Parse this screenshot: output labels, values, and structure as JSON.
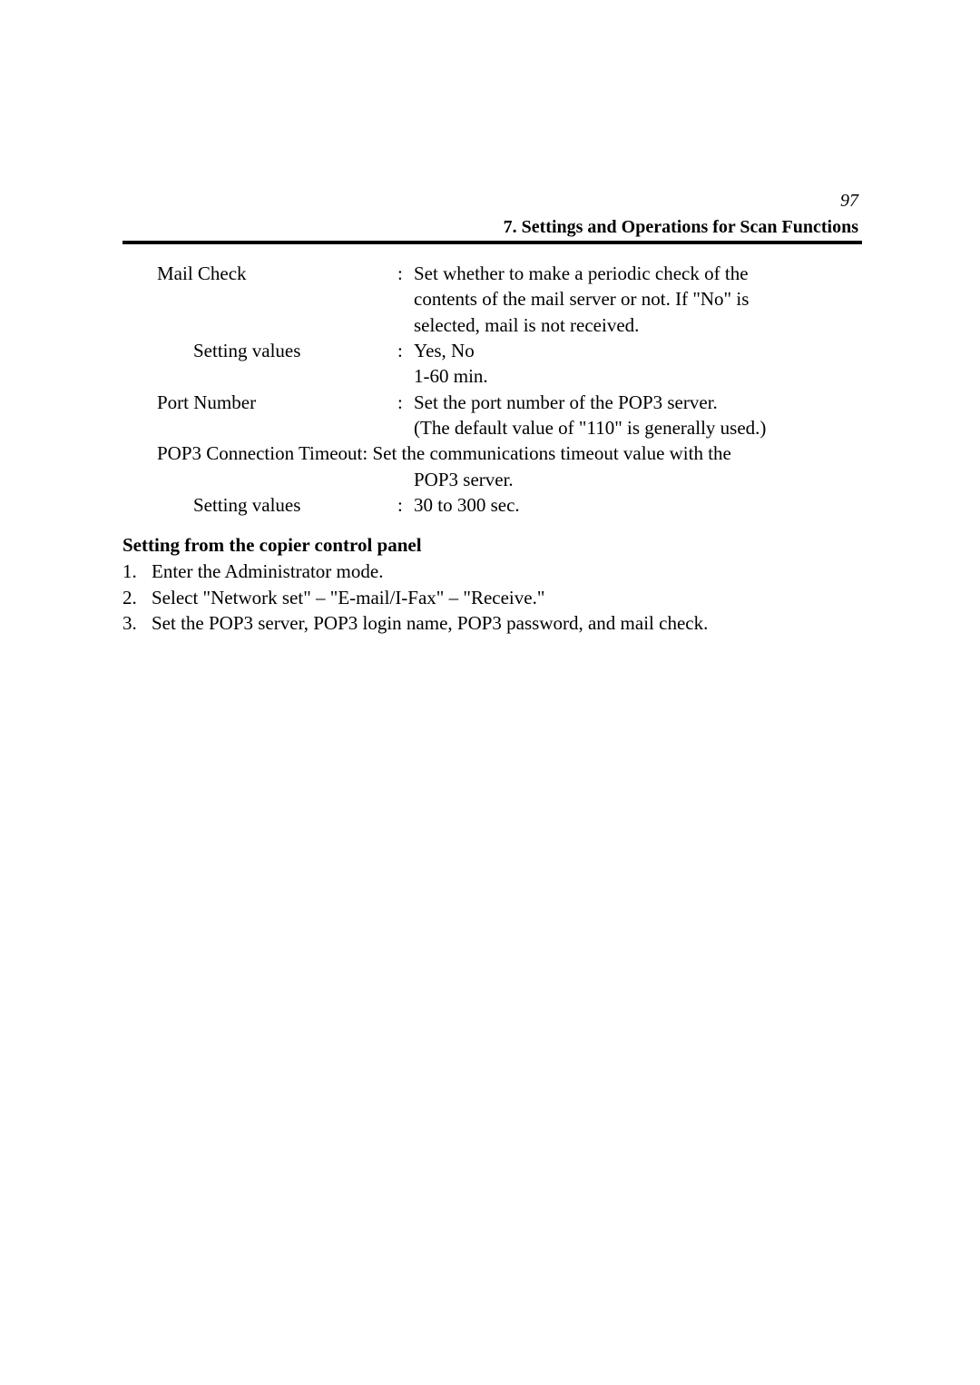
{
  "pageNumber": "97",
  "sectionHeader": "7. Settings and Operations for Scan Functions",
  "defs": {
    "mailCheck": {
      "term": "Mail Check",
      "l1": "Set whether to make a periodic check of the",
      "l2": "contents of the mail server or not.  If \"No\" is",
      "l3": "selected, mail is not received."
    },
    "mailCheckValues": {
      "term": "Setting values",
      "l1": "Yes, No",
      "l2": "1-60 min."
    },
    "portNumber": {
      "term": "Port Number",
      "l1": "Set the port number of the POP3 server.",
      "l2": "(The default value of \"110\" is generally used.)"
    },
    "pop3Timeout": {
      "l1": "POP3 Connection Timeout: Set the communications timeout value with the",
      "l2": "POP3 server."
    },
    "timeoutValues": {
      "term": "Setting values",
      "l1": "30 to 300 sec."
    }
  },
  "subsectionTitle": "Setting from the copier control panel",
  "steps": {
    "s1n": "1.",
    "s1t": "Enter the Administrator mode.",
    "s2n": "2.",
    "s2t": "Select \"Network set\" – \"E-mail/I-Fax\" – \"Receive.\"",
    "s3n": "3.",
    "s3t": "Set the POP3 server, POP3 login name, POP3 password, and mail check."
  }
}
